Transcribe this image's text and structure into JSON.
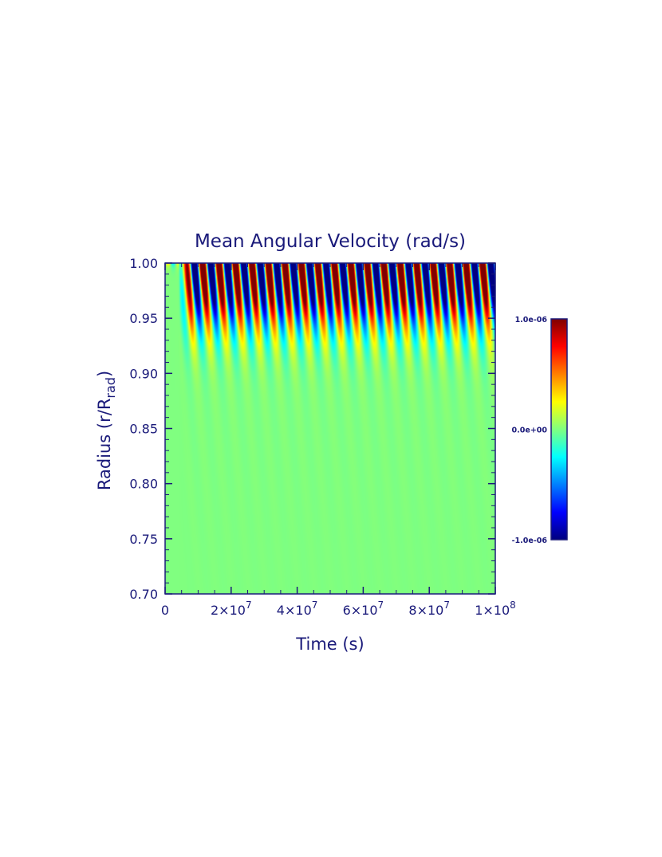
{
  "chart_data": {
    "type": "heatmap",
    "title": "Mean Angular Velocity (rad/s)",
    "xlabel": "Time (s)",
    "ylabel": {
      "main": "Radius (r/R",
      "sub": "rad",
      "close": ")"
    },
    "xlim": [
      0,
      100000000
    ],
    "ylim": [
      0.7,
      1.0
    ],
    "x_ticks": [
      {
        "value": 0,
        "mantissa": "0",
        "exponent": ""
      },
      {
        "value": 20000000,
        "mantissa": "2×10",
        "exponent": "7"
      },
      {
        "value": 40000000,
        "mantissa": "4×10",
        "exponent": "7"
      },
      {
        "value": 60000000,
        "mantissa": "6×10",
        "exponent": "7"
      },
      {
        "value": 80000000,
        "mantissa": "8×10",
        "exponent": "7"
      },
      {
        "value": 100000000,
        "mantissa": "1×10",
        "exponent": "8"
      }
    ],
    "y_ticks": [
      {
        "value": 0.7,
        "label": "0.70"
      },
      {
        "value": 0.75,
        "label": "0.75"
      },
      {
        "value": 0.8,
        "label": "0.80"
      },
      {
        "value": 0.85,
        "label": "0.85"
      },
      {
        "value": 0.9,
        "label": "0.90"
      },
      {
        "value": 0.95,
        "label": "0.95"
      },
      {
        "value": 1.0,
        "label": "1.00"
      }
    ],
    "colorbar": {
      "min": -1e-06,
      "max": 1e-06,
      "colormap": "jet",
      "labels": [
        {
          "value": 1e-06,
          "label": "1.0e-06"
        },
        {
          "value": 0,
          "label": "0.0e+00"
        },
        {
          "value": -1e-06,
          "label": "-1.0e-06"
        }
      ]
    },
    "pattern": {
      "onset_time": 4000000,
      "period": 5000000,
      "penetration_radius": 0.905,
      "amplitude_max": 1e-06
    }
  },
  "colors": {
    "axis": "#1a1a7a",
    "background": "#ffffff"
  }
}
